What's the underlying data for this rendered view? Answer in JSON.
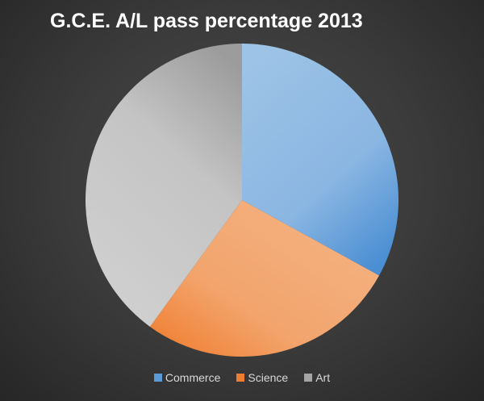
{
  "chart_data": {
    "type": "pie",
    "title": "G.C.E. A/L pass percentage 2013",
    "categories": [
      "Commerce",
      "Science",
      "Art"
    ],
    "values": [
      33,
      27,
      40
    ],
    "colors": [
      "#5b9bd5",
      "#ed7d31",
      "#a5a5a5"
    ],
    "legend_position": "bottom",
    "background": "#3a3a3a"
  }
}
